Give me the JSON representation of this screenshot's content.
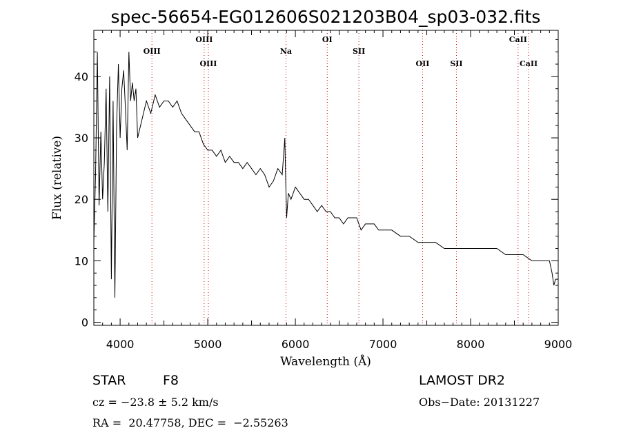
{
  "chart_data": {
    "type": "line",
    "title": "spec-56654-EG012606S021203B04_sp03-032.fits",
    "xlabel": "Wavelength (Å)",
    "ylabel": "Flux (relative)",
    "xlim": [
      3700,
      9000
    ],
    "ylim": [
      -0.5,
      47.5
    ],
    "xticks": [
      "4000",
      "5000",
      "6000",
      "7000",
      "8000",
      "9000"
    ],
    "yticks": [
      "0",
      "10",
      "20",
      "30",
      "40"
    ],
    "series": [
      {
        "values_x": [
          3700,
          3720,
          3740,
          3760,
          3780,
          3800,
          3820,
          3840,
          3860,
          3880,
          3900,
          3920,
          3940,
          3960,
          3980,
          4000,
          4020,
          4040,
          4060,
          4080,
          4100,
          4120,
          4140,
          4160,
          4180,
          4200,
          4250,
          4300,
          4350,
          4400,
          4450,
          4500,
          4550,
          4600,
          4650,
          4700,
          4750,
          4800,
          4850,
          4900,
          4950,
          5000,
          5050,
          5100,
          5150,
          5200,
          5250,
          5300,
          5350,
          5400,
          5450,
          5500,
          5550,
          5600,
          5650,
          5700,
          5750,
          5800,
          5850,
          5880,
          5890,
          5900,
          5920,
          5950,
          6000,
          6050,
          6100,
          6150,
          6200,
          6250,
          6300,
          6350,
          6400,
          6450,
          6500,
          6550,
          6600,
          6650,
          6700,
          6750,
          6800,
          6850,
          6900,
          6950,
          7000,
          7100,
          7200,
          7300,
          7400,
          7500,
          7600,
          7700,
          7800,
          7900,
          8000,
          8100,
          8200,
          8300,
          8400,
          8500,
          8600,
          8700,
          8800,
          8850,
          8900,
          8930,
          8950,
          8970,
          9000
        ],
        "values_y": [
          13,
          24,
          44,
          19,
          31,
          20,
          26,
          38,
          18,
          40,
          7,
          36,
          4,
          32,
          42,
          30,
          38,
          41,
          35,
          28,
          44,
          36,
          39,
          36,
          38,
          30,
          33,
          36,
          34,
          37,
          35,
          36,
          36,
          35,
          36,
          34,
          33,
          32,
          31,
          31,
          29,
          28,
          28,
          27,
          28,
          26,
          27,
          26,
          26,
          25,
          26,
          25,
          24,
          25,
          24,
          22,
          23,
          25,
          24,
          30,
          23,
          17,
          21,
          20,
          22,
          21,
          20,
          20,
          19,
          18,
          19,
          18,
          18,
          17,
          17,
          16,
          17,
          17,
          17,
          15,
          16,
          16,
          16,
          15,
          15,
          15,
          14,
          14,
          13,
          13,
          13,
          12,
          12,
          12,
          12,
          12,
          12,
          12,
          11,
          11,
          11,
          10,
          10,
          10,
          10,
          8,
          6,
          7,
          7
        ]
      }
    ],
    "line_markers": [
      {
        "label": "OIII",
        "wavelength": 4363,
        "row": "low"
      },
      {
        "label": "OIII",
        "wavelength": 4959,
        "row": "high"
      },
      {
        "label": "OIII",
        "wavelength": 5007,
        "row": "mid"
      },
      {
        "label": "Na",
        "wavelength": 5893,
        "row": "low"
      },
      {
        "label": "OI",
        "wavelength": 6364,
        "row": "high"
      },
      {
        "label": "SII",
        "wavelength": 6725,
        "row": "low"
      },
      {
        "label": "OII",
        "wavelength": 7452,
        "row": "mid"
      },
      {
        "label": "SII",
        "wavelength": 7838,
        "row": "mid"
      },
      {
        "label": "CaII",
        "wavelength": 8542,
        "row": "high"
      },
      {
        "label": "CaII",
        "wavelength": 8662,
        "row": "mid"
      }
    ],
    "grid": false,
    "legend": "none"
  },
  "info": {
    "object_type": "STAR",
    "subclass": "F8",
    "survey": "LAMOST DR2",
    "velocity": "cz = −23.8 ± 5.2 km/s",
    "obs_date": "Obs−Date: 20131227",
    "coords": "RA =  20.47758, DEC =  −2.55263"
  },
  "colors": {
    "line_marker": "#cc0000",
    "spectrum": "#000000"
  }
}
